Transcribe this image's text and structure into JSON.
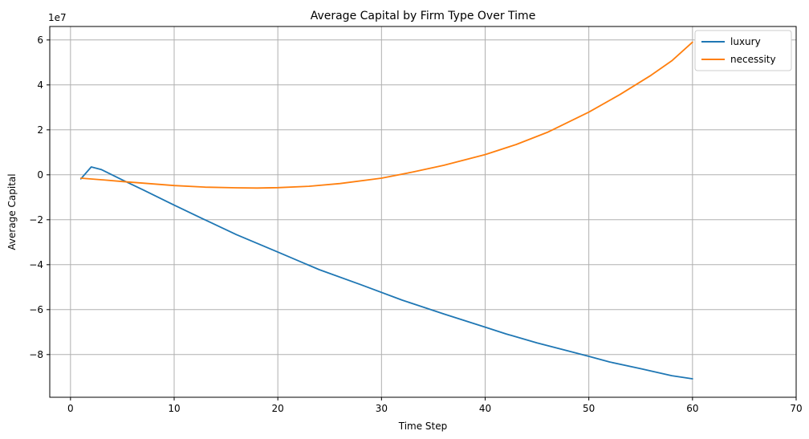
{
  "chart_data": {
    "type": "line",
    "title": "Average Capital by Firm Type Over Time",
    "xlabel": "Time Step",
    "ylabel": "Average Capital",
    "y_scale_label": "1e7",
    "xlim": [
      -2,
      70
    ],
    "ylim": [
      -99000000,
      66000000
    ],
    "x_ticks": [
      0,
      10,
      20,
      30,
      40,
      50,
      60,
      70
    ],
    "y_ticks": [
      -80000000,
      -60000000,
      -40000000,
      -20000000,
      0,
      20000000,
      40000000,
      60000000
    ],
    "x_tick_labels": [
      "0",
      "10",
      "20",
      "30",
      "40",
      "50",
      "60",
      "70"
    ],
    "y_tick_labels": [
      "−8",
      "−6",
      "−4",
      "−2",
      "0",
      "2",
      "4",
      "6"
    ],
    "grid": true,
    "legend_position": "top-right",
    "series": [
      {
        "name": "luxury",
        "color": "#1f77b4",
        "x": [
          1,
          2,
          3,
          5,
          7,
          10,
          13,
          16,
          20,
          24,
          28,
          32,
          36,
          40,
          42,
          45,
          48,
          50,
          52,
          55,
          58,
          60
        ],
        "y": [
          -1800000,
          3500000,
          2300000,
          -2300000,
          -6700000,
          -13500000,
          -20100000,
          -26600000,
          -34400000,
          -42200000,
          -48900000,
          -55800000,
          -61900000,
          -67800000,
          -70800000,
          -74800000,
          -78400000,
          -80800000,
          -83300000,
          -86300000,
          -89400000,
          -90800000
        ]
      },
      {
        "name": "necessity",
        "color": "#ff7f0e",
        "x": [
          1,
          3,
          5,
          7,
          10,
          13,
          16,
          18,
          20,
          23,
          26,
          30,
          33,
          36,
          40,
          43,
          46,
          50,
          53,
          56,
          58,
          60
        ],
        "y": [
          -1500000,
          -2200000,
          -3000000,
          -3700000,
          -4800000,
          -5500000,
          -5800000,
          -5900000,
          -5700000,
          -5100000,
          -3900000,
          -1500000,
          1200000,
          4200000,
          9000000,
          13500000,
          18900000,
          27900000,
          35700000,
          44300000,
          50700000,
          59000000
        ]
      }
    ]
  }
}
